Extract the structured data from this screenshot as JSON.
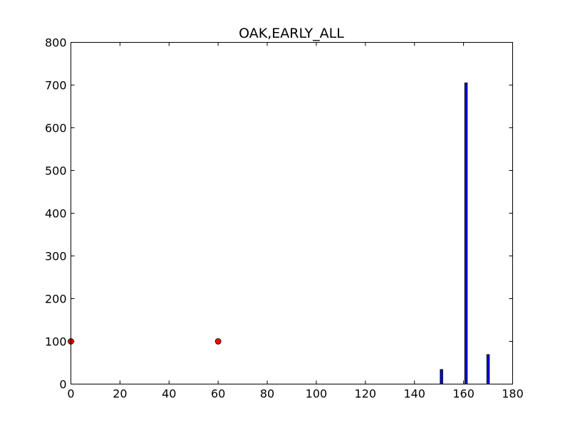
{
  "chart_data": {
    "type": "bar",
    "title": "OAK,EARLY_ALL",
    "xlabel": "",
    "ylabel": "",
    "xlim": [
      0,
      180
    ],
    "ylim": [
      0,
      800
    ],
    "xticks": [
      0,
      20,
      40,
      60,
      80,
      100,
      120,
      140,
      160,
      180
    ],
    "yticks": [
      0,
      100,
      200,
      300,
      400,
      500,
      600,
      700,
      800
    ],
    "grid": false,
    "series": [
      {
        "kind": "bar",
        "color": "#0000ff",
        "edgecolor": "#000000",
        "bar_width": 1,
        "points": [
          {
            "x": 151,
            "y": 34
          },
          {
            "x": 161,
            "y": 705
          },
          {
            "x": 170,
            "y": 69
          }
        ]
      },
      {
        "kind": "marker",
        "color": "#ff0000",
        "edgecolor": "#000000",
        "points": [
          {
            "x": 0,
            "y": 100
          },
          {
            "x": 60,
            "y": 100
          }
        ]
      }
    ]
  }
}
